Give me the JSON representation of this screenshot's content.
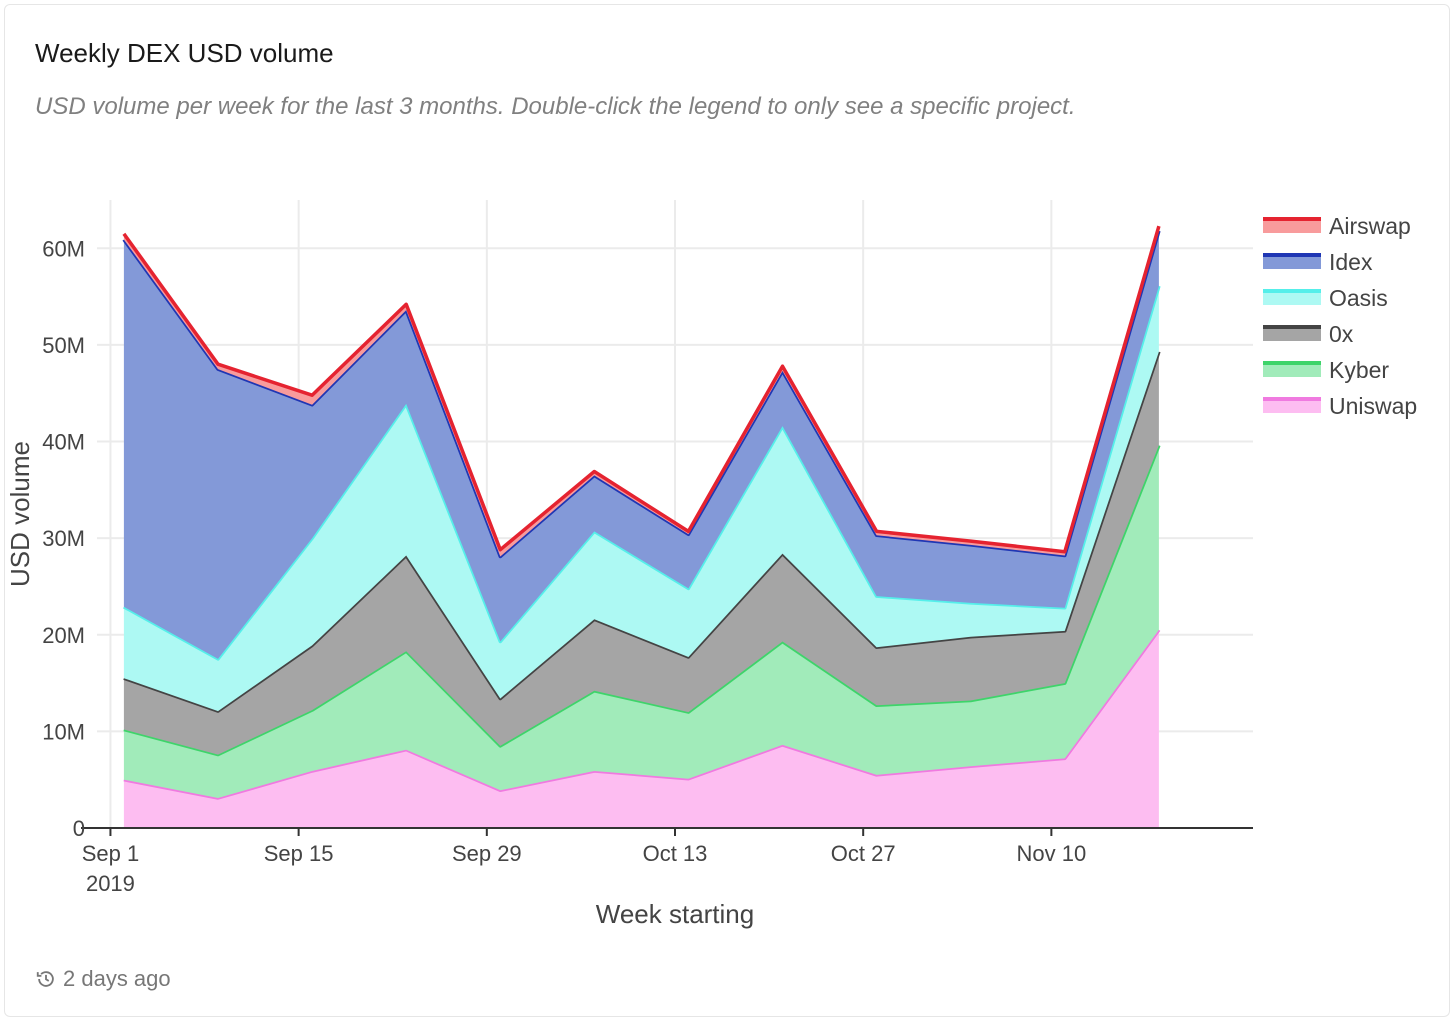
{
  "header": {
    "title": "Weekly DEX USD volume",
    "subtitle": "USD volume per week for the last 3 months. Double-click the legend to only see a specific project."
  },
  "footer": {
    "icon": "history-icon",
    "updated": "2 days ago"
  },
  "chart_data": {
    "type": "area",
    "stacked": true,
    "xlabel": "Week starting",
    "ylabel": "USD volume",
    "x": [
      "2019-09-02",
      "2019-09-09",
      "2019-09-16",
      "2019-09-23",
      "2019-09-30",
      "2019-10-07",
      "2019-10-14",
      "2019-10-21",
      "2019-10-28",
      "2019-11-04",
      "2019-11-11",
      "2019-11-18"
    ],
    "x_ticks": [
      {
        "date": "2019-09-01",
        "label": "Sep 1",
        "sublabel": "2019"
      },
      {
        "date": "2019-09-15",
        "label": "Sep 15",
        "sublabel": ""
      },
      {
        "date": "2019-09-29",
        "label": "Sep 29",
        "sublabel": ""
      },
      {
        "date": "2019-10-13",
        "label": "Oct 13",
        "sublabel": ""
      },
      {
        "date": "2019-10-27",
        "label": "Oct 27",
        "sublabel": ""
      },
      {
        "date": "2019-11-10",
        "label": "Nov 10",
        "sublabel": ""
      }
    ],
    "x_range": [
      "2019-08-31",
      "2019-11-25"
    ],
    "ylim": [
      0,
      65000000
    ],
    "y_ticks": [
      {
        "value": 0,
        "label": "0"
      },
      {
        "value": 10000000,
        "label": "10M"
      },
      {
        "value": 20000000,
        "label": "20M"
      },
      {
        "value": 30000000,
        "label": "30M"
      },
      {
        "value": 40000000,
        "label": "40M"
      },
      {
        "value": 50000000,
        "label": "50M"
      },
      {
        "value": 60000000,
        "label": "60M"
      }
    ],
    "grid": true,
    "legend_position": "right-top",
    "series": [
      {
        "name": "Uniswap",
        "line": "#f07ae0",
        "fill": "#fdbdf1",
        "values": [
          5000000,
          3100000,
          5900000,
          8100000,
          3900000,
          5900000,
          5100000,
          8600000,
          5500000,
          6400000,
          7200000,
          20500000
        ]
      },
      {
        "name": "Kyber",
        "line": "#3ed46a",
        "fill": "#a1ebba",
        "values": [
          5200000,
          4500000,
          6300000,
          10200000,
          4600000,
          8300000,
          6900000,
          10700000,
          7200000,
          6800000,
          7800000,
          19100000
        ]
      },
      {
        "name": "0x",
        "line": "#444444",
        "fill": "#a5a5a5",
        "values": [
          5300000,
          4500000,
          6700000,
          9900000,
          4900000,
          7400000,
          5700000,
          9100000,
          6000000,
          6600000,
          5400000,
          9700000
        ]
      },
      {
        "name": "Oasis",
        "line": "#55efea",
        "fill": "#adf9f3",
        "values": [
          7400000,
          5400000,
          11100000,
          15700000,
          5900000,
          9100000,
          7100000,
          13200000,
          5300000,
          3500000,
          2400000,
          6800000
        ]
      },
      {
        "name": "Idex",
        "line": "#1f36b4",
        "fill": "#8399d8",
        "values": [
          38000000,
          30000000,
          13800000,
          9700000,
          8800000,
          5800000,
          5600000,
          5700000,
          6300000,
          6000000,
          5400000,
          5700000
        ]
      },
      {
        "name": "Airswap",
        "line": "#e52330",
        "fill": "#f89b9c",
        "values": [
          600000,
          500000,
          1000000,
          600000,
          700000,
          400000,
          300000,
          500000,
          400000,
          400000,
          400000,
          500000
        ]
      }
    ]
  }
}
